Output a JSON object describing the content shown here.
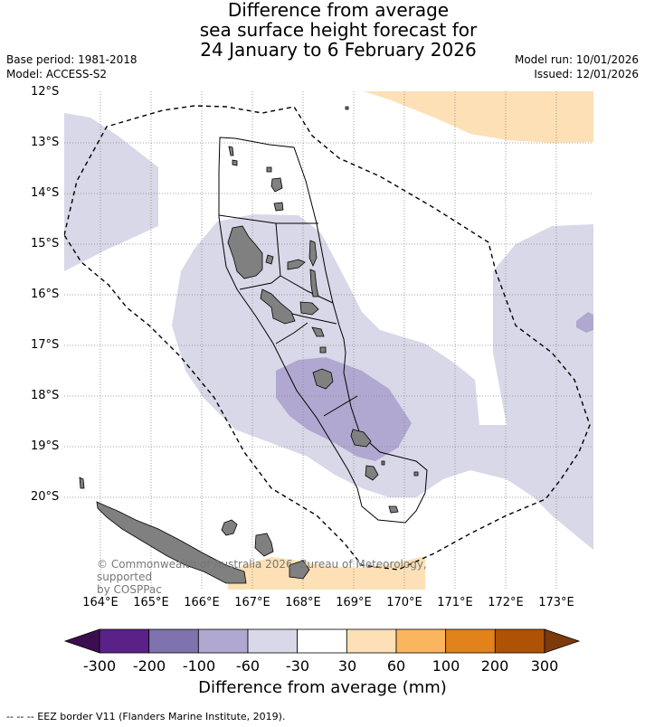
{
  "title_lines": [
    "Difference from average",
    "sea surface height forecast for",
    "24 January to 6 February 2026"
  ],
  "base_period": "Base period: 1981-2018",
  "model": "Model: ACCESS-S2",
  "model_run": "Model run: 10/01/2026",
  "issued": "Issued: 12/01/2026",
  "lat_labels": [
    "12°S",
    "13°S",
    "14°S",
    "15°S",
    "16°S",
    "17°S",
    "18°S",
    "19°S",
    "20°S"
  ],
  "lon_labels": [
    "164°E",
    "165°E",
    "166°E",
    "167°E",
    "168°E",
    "169°E",
    "170°E",
    "171°E",
    "172°E",
    "173°E"
  ],
  "copyright_lines": [
    "© Commonwealth of Australia 2026, Bureau of Meteorology, supported",
    "by COSPPac"
  ],
  "colorbar": {
    "colors": [
      "#3b0f4f",
      "#5a2288",
      "#8072ae",
      "#b0a8d0",
      "#d8d8e8",
      "#ffffff",
      "#fde0b5",
      "#fbb55f",
      "#e2821a",
      "#b05206",
      "#7d3a0a"
    ],
    "ticks": [
      "-300",
      "-200",
      "-100",
      "-60",
      "-30",
      "30",
      "60",
      "100",
      "200",
      "300"
    ],
    "label": "Difference from average (mm)"
  },
  "footnote": "--  --  -- EEZ border V11 (Flanders Marine Institute, 2019)."
}
